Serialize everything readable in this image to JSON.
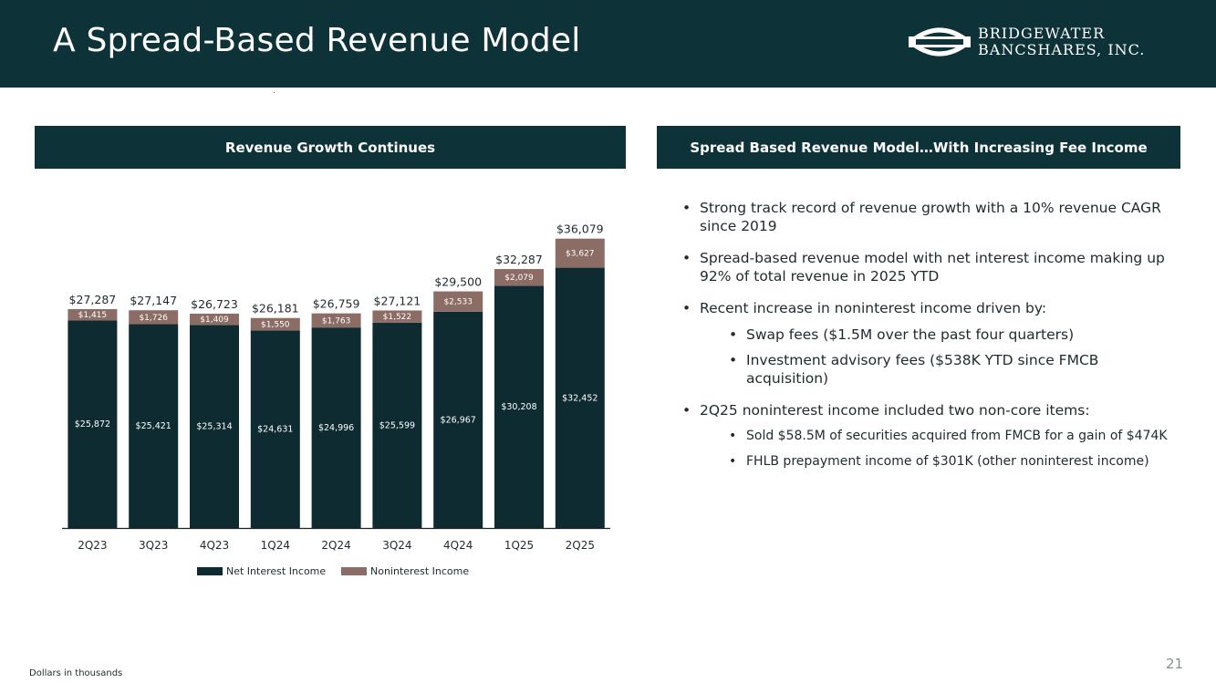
{
  "header": {
    "title": "A Spread-Based Revenue Model",
    "logo_line1": "BRIDGEWATER",
    "logo_line2": "BANCSHARES, INC."
  },
  "left_panel": {
    "title": "Revenue Growth Continues"
  },
  "right_panel": {
    "title": "Spread Based Revenue Model…With Increasing Fee Income",
    "bullets": [
      {
        "text": "Strong track record of revenue growth with a 10% revenue CAGR since 2019"
      },
      {
        "text": "Spread-based revenue model with net interest income making up 92% of total revenue in 2025 YTD"
      },
      {
        "text": "Recent increase in noninterest income driven by:",
        "sub": [
          "Swap fees ($1.5M over the past four quarters)",
          "Investment advisory fees ($538K YTD since FMCB acquisition)"
        ]
      },
      {
        "text": "2Q25 noninterest income included two non-core items:",
        "sub": [
          "Sold $58.5M of securities acquired from FMCB for a gain of $474K",
          "FHLB prepayment income of $301K (other noninterest income)"
        ]
      }
    ]
  },
  "chart_data": {
    "type": "bar",
    "stacked": true,
    "categories": [
      "2Q23",
      "3Q23",
      "4Q23",
      "1Q24",
      "2Q24",
      "3Q24",
      "4Q24",
      "1Q25",
      "2Q25"
    ],
    "series": [
      {
        "name": "Net Interest Income",
        "color": "#0d2b31",
        "values": [
          25872,
          25421,
          25314,
          24631,
          24996,
          25599,
          26967,
          30208,
          32452
        ],
        "labels": [
          "$25,872",
          "$25,421",
          "$25,314",
          "$24,631",
          "$24,996",
          "$25,599",
          "$26,967",
          "$30,208",
          "$32,452"
        ]
      },
      {
        "name": "Noninterest Income",
        "color": "#8c6d66",
        "values": [
          1415,
          1726,
          1409,
          1550,
          1763,
          1522,
          2533,
          2079,
          3627
        ],
        "labels": [
          "$1,415",
          "$1,726",
          "$1,409",
          "$1,550",
          "$1,763",
          "$1,522",
          "$2,533",
          "$2,079",
          "$3,627"
        ]
      }
    ],
    "totals": [
      "$27,287",
      "$27,147",
      "$26,723",
      "$26,181",
      "$26,759",
      "$27,121",
      "$29,500",
      "$32,287",
      "$36,079"
    ],
    "legend_position": "bottom",
    "grid": false
  },
  "footer": {
    "note": "Dollars in thousands",
    "page_number": "21"
  }
}
